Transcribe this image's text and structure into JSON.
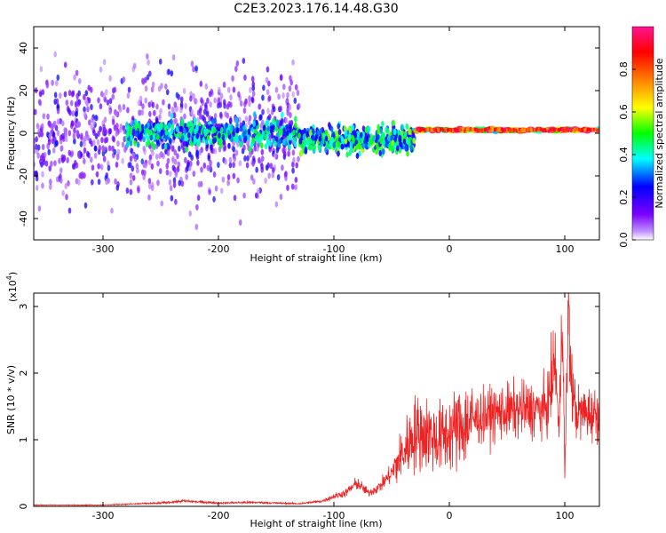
{
  "chart_data": [
    {
      "type": "heatmap",
      "title": "C2E3.2023.176.14.48.G30",
      "xlabel": "Height of straight line (km)",
      "ylabel": "Frequency (Hz)",
      "xlim": [
        -360,
        130
      ],
      "ylim": [
        -50,
        50
      ],
      "x_ticks": [
        -300,
        -200,
        -100,
        0,
        100
      ],
      "y_ticks": [
        -40,
        -20,
        0,
        20,
        40
      ],
      "colorbar": {
        "label": "Normalized spectral amplitude",
        "range": [
          0,
          1
        ],
        "ticks": [
          "0.0",
          "0.2",
          "0.4",
          "0.6",
          "0.8"
        ],
        "colors": [
          "#ffffff",
          "#7b00ff",
          "#0000ff",
          "#00ffff",
          "#00ff00",
          "#ffff00",
          "#ff8000",
          "#ff0000",
          "#ff1493"
        ]
      },
      "regions": [
        {
          "x": [
            -360,
            -130
          ],
          "f_center": 0,
          "f_spread": 50,
          "amplitude": 0.15,
          "description_value": "scattered noise"
        },
        {
          "x": [
            -280,
            -130
          ],
          "f_center": 0,
          "f_spread": 10,
          "amplitude": 0.4
        },
        {
          "x": [
            -130,
            -30
          ],
          "f_center": -3,
          "f_spread": 10,
          "amplitude": 0.45
        },
        {
          "x": [
            -30,
            130
          ],
          "f_center": 1.5,
          "f_spread": 1.5,
          "amplitude": 0.85
        }
      ]
    },
    {
      "type": "line",
      "xlabel": "Height of straight line (km)",
      "ylabel": "SNR (10 * v/v)",
      "y_scale_note": "(x10",
      "y_scale_exp": "4",
      "y_scale_close": ")",
      "xlim": [
        -360,
        130
      ],
      "ylim": [
        0,
        3.2
      ],
      "x_ticks": [
        -300,
        -200,
        -100,
        0,
        100
      ],
      "y_ticks": [
        0,
        1,
        2,
        3
      ],
      "line_color": "#ee2222",
      "series": [
        {
          "x": [
            -360,
            -300,
            -250,
            -230,
            -200,
            -170,
            -150,
            -130,
            -110,
            -100,
            -90,
            -80,
            -70,
            -60,
            -50,
            -40,
            -30,
            -20,
            -10,
            0,
            10,
            20,
            30,
            40,
            50,
            60,
            70,
            80,
            85,
            88,
            92,
            95,
            98,
            100,
            103,
            106,
            110,
            120,
            130
          ],
          "y": [
            0.02,
            0.02,
            0.05,
            0.08,
            0.05,
            0.06,
            0.05,
            0.04,
            0.08,
            0.15,
            0.2,
            0.35,
            0.2,
            0.3,
            0.5,
            0.8,
            1.1,
            1.1,
            1.0,
            1.1,
            1.2,
            1.3,
            1.35,
            1.4,
            1.42,
            1.45,
            1.45,
            1.45,
            1.5,
            1.8,
            2.2,
            1.0,
            3.2,
            0.4,
            2.9,
            1.8,
            1.4,
            1.4,
            1.38
          ]
        }
      ]
    }
  ]
}
